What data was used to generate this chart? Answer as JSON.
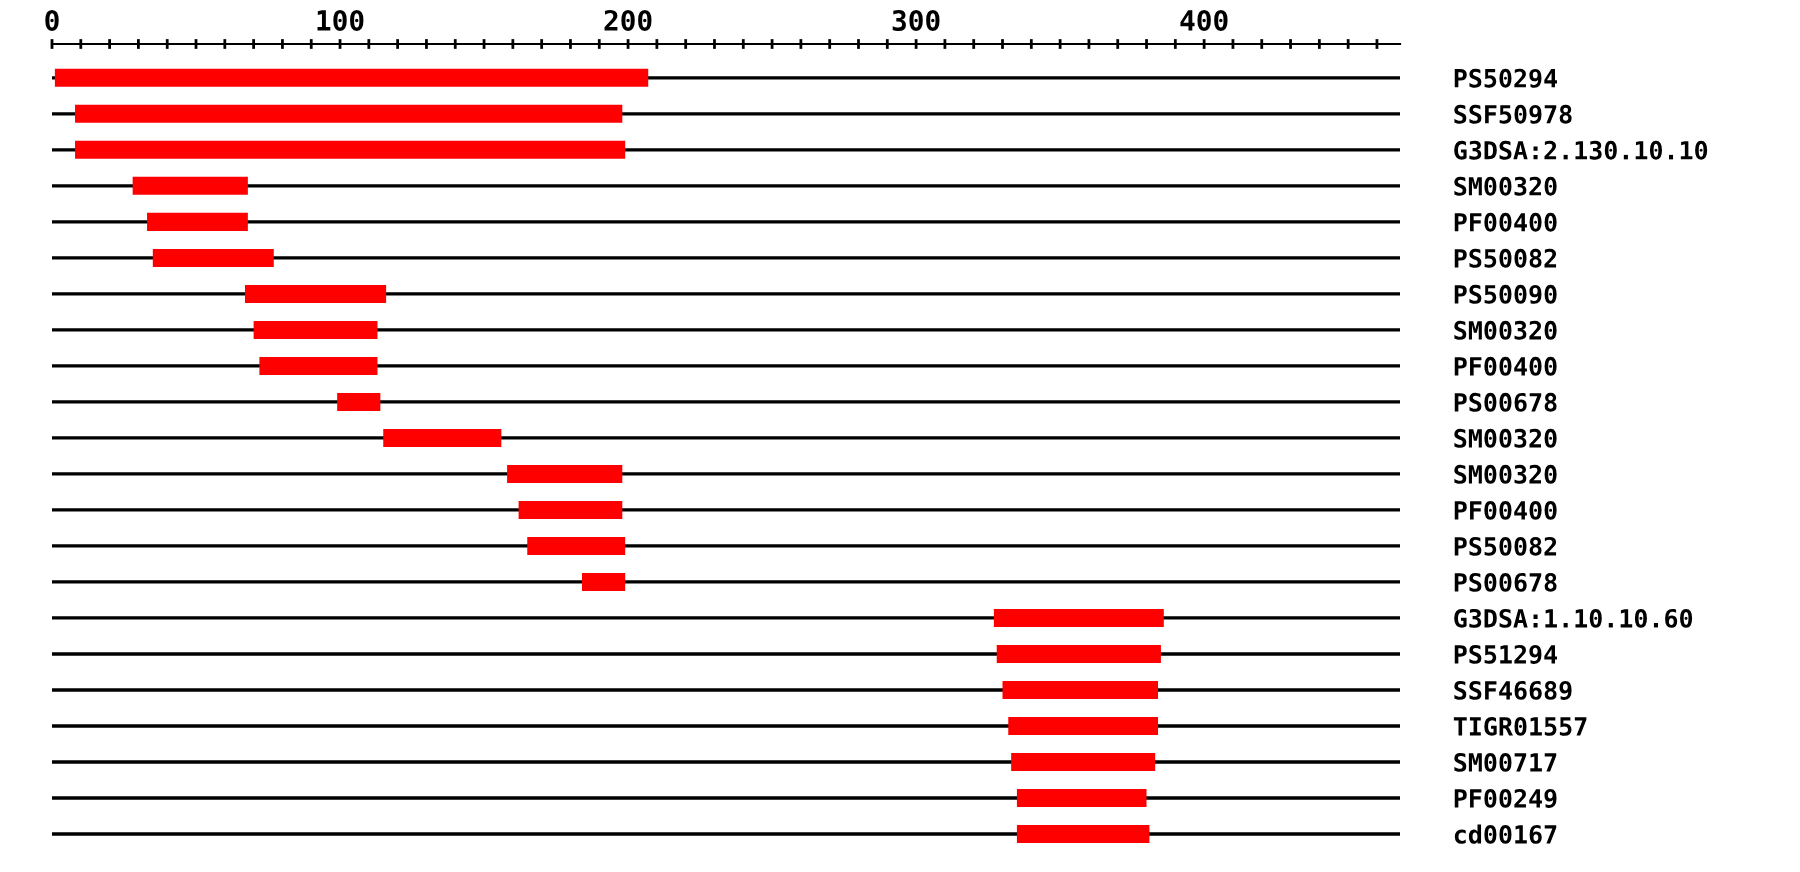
{
  "chart_data": {
    "type": "bar",
    "orientation": "horizontal",
    "categories": [
      "PS50294",
      "SSF50978",
      "G3DSA:2.130.10.10",
      "SM00320",
      "PF00400",
      "PS50082",
      "PS50090",
      "SM00320",
      "PF00400",
      "PS00678",
      "SM00320",
      "SM00320",
      "PF00400",
      "PS50082",
      "PS00678",
      "G3DSA:1.10.10.60",
      "PS51294",
      "SSF46689",
      "TIGR01557",
      "SM00717",
      "PF00249",
      "cd00167"
    ],
    "base": [
      1,
      8,
      8,
      28,
      33,
      35,
      67,
      70,
      72,
      99,
      115,
      158,
      162,
      165,
      184,
      327,
      328,
      330,
      332,
      333,
      335,
      335
    ],
    "values": [
      206,
      190,
      191,
      40,
      35,
      42,
      49,
      43,
      41,
      15,
      41,
      40,
      36,
      34,
      15,
      59,
      57,
      54,
      52,
      50,
      45,
      46
    ],
    "color": "#ff0000",
    "xlim": [
      0,
      468
    ],
    "xticks": [
      0,
      {
        "value": 10,
        "label": null
      },
      {
        "value": 20,
        "label": null
      },
      {
        "value": 30,
        "label": null
      },
      {
        "value": 40,
        "label": null
      },
      {
        "value": 50,
        "label": null
      },
      {
        "value": 60,
        "label": null
      },
      {
        "value": 70,
        "label": null
      },
      {
        "value": 80,
        "label": null
      },
      {
        "value": 90,
        "label": null
      },
      100,
      {
        "value": 110,
        "label": null
      },
      {
        "value": 120,
        "label": null
      },
      {
        "value": 130,
        "label": null
      },
      {
        "value": 140,
        "label": null
      },
      {
        "value": 150,
        "label": null
      },
      {
        "value": 160,
        "label": null
      },
      {
        "value": 170,
        "label": null
      },
      {
        "value": 180,
        "label": null
      },
      {
        "value": 190,
        "label": null
      },
      200,
      {
        "value": 210,
        "label": null
      },
      {
        "value": 220,
        "label": null
      },
      {
        "value": 230,
        "label": null
      },
      {
        "value": 240,
        "label": null
      },
      {
        "value": 250,
        "label": null
      },
      {
        "value": 260,
        "label": null
      },
      {
        "value": 270,
        "label": null
      },
      {
        "value": 280,
        "label": null
      },
      {
        "value": 290,
        "label": null
      },
      300,
      {
        "value": 310,
        "label": null
      },
      {
        "value": 320,
        "label": null
      },
      {
        "value": 330,
        "label": null
      },
      {
        "value": 340,
        "label": null
      },
      {
        "value": 350,
        "label": null
      },
      {
        "value": 360,
        "label": null
      },
      {
        "value": 370,
        "label": null
      },
      {
        "value": 380,
        "label": null
      },
      {
        "value": 390,
        "label": null
      },
      400,
      {
        "value": 410,
        "label": null
      },
      {
        "value": 420,
        "label": null
      },
      {
        "value": 430,
        "label": null
      },
      {
        "value": 440,
        "label": null
      },
      {
        "value": 450,
        "label": null
      },
      {
        "value": 460,
        "label": null
      }
    ],
    "grid": "y"
  }
}
